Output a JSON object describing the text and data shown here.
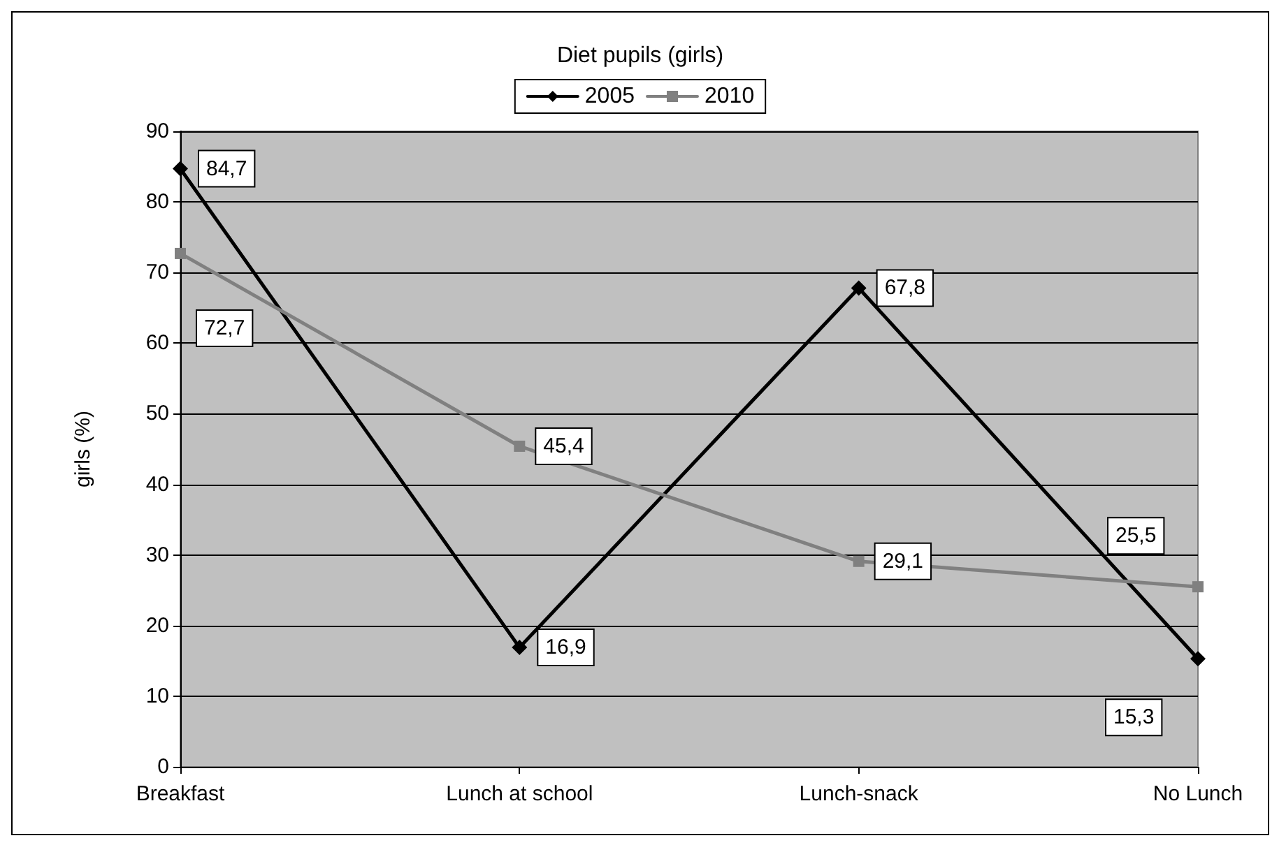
{
  "chart_data": {
    "type": "line",
    "title": "Diet pupils (girls)",
    "ylabel": "girls (%)",
    "categories": [
      "Breakfast",
      "Lunch at school",
      "Lunch-snack",
      "No Lunch"
    ],
    "series": [
      {
        "name": "2005",
        "color": "#000000",
        "marker": "diamond",
        "values": [
          84.7,
          16.9,
          67.8,
          15.3
        ],
        "value_labels": [
          "84,7",
          "16,9",
          "67,8",
          "15,3"
        ]
      },
      {
        "name": "2010",
        "color": "#808080",
        "marker": "square",
        "values": [
          72.7,
          45.4,
          29.1,
          25.5
        ],
        "value_labels": [
          "72,7",
          "45,4",
          "29,1",
          "25,5"
        ]
      }
    ],
    "ylim": [
      0,
      90
    ],
    "yticks": [
      0,
      10,
      20,
      30,
      40,
      50,
      60,
      70,
      80,
      90
    ],
    "grid": "y",
    "legend": "top",
    "line_style": "solid"
  }
}
